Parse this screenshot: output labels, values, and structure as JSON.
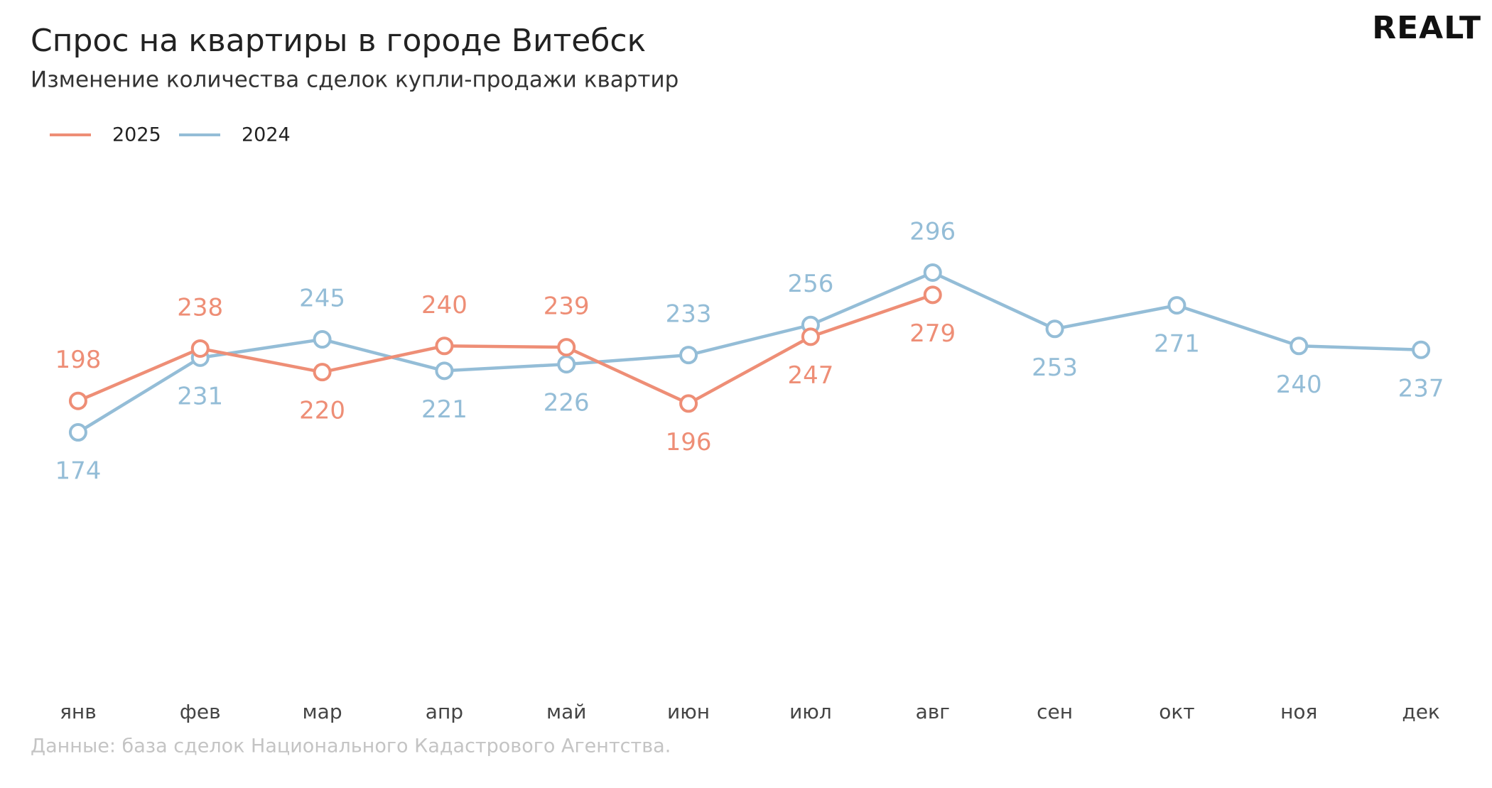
{
  "chart_data": {
    "type": "line",
    "title": "Спрос на квартиры в городе Витебск",
    "subtitle": "Изменение количества сделок купли-продажи квартир",
    "logo": "REALT",
    "source": "Данные: база сделок Национального Кадастрового Агентства.",
    "categories": [
      "янв",
      "фев",
      "мар",
      "апр",
      "май",
      "июн",
      "июл",
      "авг",
      "сен",
      "окт",
      "ноя",
      "дек"
    ],
    "series": [
      {
        "name": "2025",
        "color": "#ee8e76",
        "values": [
          198,
          238,
          220,
          240,
          239,
          196,
          247,
          279,
          null,
          null,
          null,
          null
        ]
      },
      {
        "name": "2024",
        "color": "#94bdd7",
        "values": [
          174,
          231,
          245,
          221,
          226,
          233,
          256,
          296,
          253,
          271,
          240,
          237
        ]
      }
    ],
    "ylim": [
      0,
      380
    ],
    "legend": "top-left",
    "grid": false
  }
}
